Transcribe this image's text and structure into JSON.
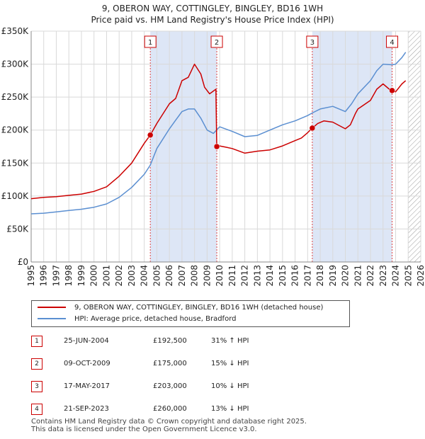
{
  "page": {
    "title_line1": "9, OBERON WAY, COTTINGLEY, BINGLEY, BD16 1WH",
    "title_line2": "Price paid vs. HM Land Registry's House Price Index (HPI)",
    "footer_line1": "Contains HM Land Registry data © Crown copyright and database right 2025.",
    "footer_line2": "This data is licensed under the Open Government Licence v3.0."
  },
  "legend": {
    "property_label": "9, OBERON WAY, COTTINGLEY, BINGLEY, BD16 1WH (detached house)",
    "hpi_label": "HPI: Average price, detached house, Bradford"
  },
  "transactions": [
    {
      "num": "1",
      "date": "25-JUN-2004",
      "price": "£192,500",
      "hpi_diff": "31% ↑ HPI"
    },
    {
      "num": "2",
      "date": "09-OCT-2009",
      "price": "£175,000",
      "hpi_diff": "15% ↓ HPI"
    },
    {
      "num": "3",
      "date": "17-MAY-2017",
      "price": "£203,000",
      "hpi_diff": "10% ↓ HPI"
    },
    {
      "num": "4",
      "date": "21-SEP-2023",
      "price": "£260,000",
      "hpi_diff": "13% ↓ HPI"
    }
  ],
  "colors": {
    "property_line": "#cc0000",
    "hpi_line": "#5b8fd1",
    "shade": "#dde6f6",
    "hatch": "#9a9a9a",
    "grid": "#d9d9d9",
    "marker_line": "#dd4444"
  },
  "chart_data": {
    "type": "line",
    "title": "Price paid vs. HM Land Registry's House Price Index (HPI)",
    "xlabel": "",
    "ylabel": "",
    "xlim": [
      1995,
      2026
    ],
    "ylim": [
      0,
      350000
    ],
    "grid": true,
    "legend_position": "bottom",
    "y_ticks": [
      0,
      50000,
      100000,
      150000,
      200000,
      250000,
      300000,
      350000
    ],
    "y_tick_labels": [
      "£0",
      "£50K",
      "£100K",
      "£150K",
      "£200K",
      "£250K",
      "£300K",
      "£350K"
    ],
    "x_ticks": [
      1995,
      1996,
      1997,
      1998,
      1999,
      2000,
      2001,
      2002,
      2003,
      2004,
      2005,
      2006,
      2007,
      2008,
      2009,
      2010,
      2011,
      2012,
      2013,
      2014,
      2015,
      2016,
      2017,
      2018,
      2019,
      2020,
      2021,
      2022,
      2023,
      2024,
      2025,
      2026
    ],
    "x_tick_labels": [
      "1995",
      "1996",
      "1997",
      "1998",
      "1999",
      "2000",
      "2001",
      "2002",
      "2003",
      "2004",
      "2005",
      "2006",
      "2007",
      "2008",
      "2009",
      "2010",
      "2011",
      "2012",
      "2013",
      "2014",
      "2015",
      "2016",
      "2017",
      "2018",
      "2019",
      "2020",
      "2021",
      "2022",
      "2023",
      "2024",
      "2025",
      "2026"
    ],
    "shaded_ranges": [
      [
        2004.48,
        2009.77
      ],
      [
        2017.37,
        2023.72
      ]
    ],
    "forecast_start": 2025.0,
    "series": [
      {
        "name": "9, OBERON WAY, COTTINGLEY, BINGLEY, BD16 1WH (detached house)",
        "x": [
          1995,
          1996,
          1997,
          1998,
          1999,
          2000,
          2001,
          2002,
          2003,
          2004,
          2004.48,
          2005,
          2006,
          2006.5,
          2007,
          2007.5,
          2008,
          2008.5,
          2008.8,
          2009.2,
          2009.7,
          2009.77,
          2010,
          2010.5,
          2011,
          2012,
          2013,
          2014,
          2015,
          2016,
          2016.5,
          2017,
          2017.37,
          2017.8,
          2018.3,
          2019,
          2020,
          2020.4,
          2020.8,
          2021,
          2022,
          2022.5,
          2023,
          2023.5,
          2023.72,
          2024,
          2024.5,
          2024.8
        ],
        "values": [
          96000,
          98000,
          99000,
          101000,
          103000,
          107000,
          114000,
          130000,
          150000,
          180000,
          192500,
          210000,
          240000,
          248000,
          275000,
          280000,
          300000,
          285000,
          265000,
          255000,
          262000,
          175000,
          176000,
          174000,
          172000,
          165000,
          168000,
          170000,
          176000,
          184000,
          188000,
          196000,
          203000,
          210000,
          214000,
          212000,
          202000,
          208000,
          225000,
          232000,
          245000,
          262000,
          270000,
          262000,
          260000,
          258000,
          270000,
          275000
        ]
      },
      {
        "name": "HPI: Average price, detached house, Bradford",
        "x": [
          1995,
          1996,
          1997,
          1998,
          1999,
          2000,
          2001,
          2002,
          2003,
          2004,
          2004.48,
          2005,
          2006,
          2006.5,
          2007,
          2007.5,
          2008,
          2008.5,
          2009,
          2009.5,
          2010,
          2011,
          2012,
          2013,
          2014,
          2015,
          2016,
          2017,
          2017.37,
          2018,
          2019,
          2020,
          2020.5,
          2021,
          2022,
          2022.5,
          2023,
          2023.72,
          2024,
          2024.5,
          2024.8
        ],
        "values": [
          73000,
          74000,
          76000,
          78000,
          80000,
          83000,
          88000,
          98000,
          113000,
          133000,
          147000,
          172000,
          202000,
          215000,
          228000,
          232000,
          232000,
          218000,
          200000,
          195000,
          205000,
          198000,
          190000,
          192000,
          200000,
          208000,
          214000,
          222000,
          226000,
          232000,
          236000,
          228000,
          240000,
          255000,
          275000,
          290000,
          300000,
          299000,
          300000,
          310000,
          318000
        ]
      }
    ],
    "sale_markers": [
      {
        "num": "1",
        "x": 2004.48,
        "y": 192500
      },
      {
        "num": "2",
        "x": 2009.77,
        "y": 175000
      },
      {
        "num": "3",
        "x": 2017.37,
        "y": 203000
      },
      {
        "num": "4",
        "x": 2023.72,
        "y": 260000
      }
    ]
  }
}
